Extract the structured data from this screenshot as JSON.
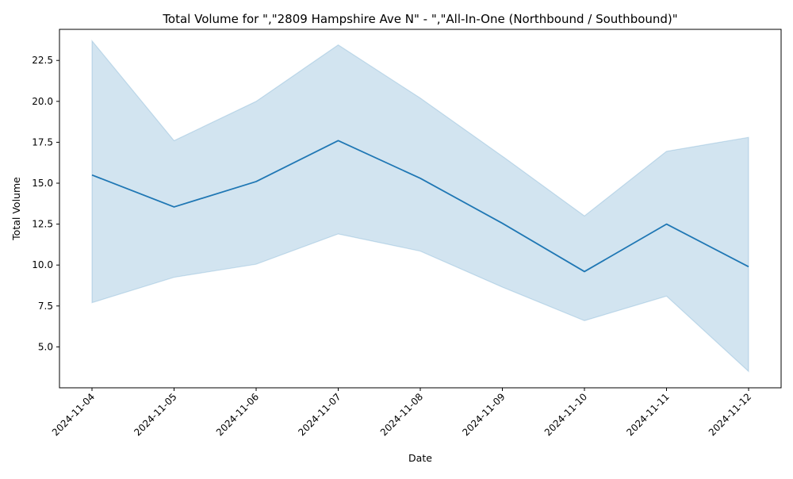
{
  "chart_data": {
    "type": "line",
    "title": "Total Volume for \",\"2809 Hampshire Ave N\" - \",\"All-In-One (Northbound / Southbound)\"",
    "xlabel": "Date",
    "ylabel": "Total Volume",
    "x": [
      "2024-11-04",
      "2024-11-05",
      "2024-11-06",
      "2024-11-07",
      "2024-11-08",
      "2024-11-09",
      "2024-11-10",
      "2024-11-11",
      "2024-11-12"
    ],
    "series": [
      {
        "values": [
          15.5,
          13.55,
          15.1,
          17.6,
          15.3,
          12.55,
          9.6,
          12.5,
          9.9
        ],
        "band_upper": [
          23.7,
          17.6,
          20.0,
          23.45,
          20.2,
          16.65,
          13.0,
          16.95,
          17.8
        ],
        "band_lower": [
          7.7,
          9.25,
          10.05,
          11.9,
          10.85,
          8.65,
          6.6,
          8.1,
          3.5
        ]
      }
    ],
    "yticks": [
      5.0,
      7.5,
      10.0,
      12.5,
      15.0,
      17.5,
      20.0,
      22.5
    ],
    "ytick_labels": [
      "5.0",
      "7.5",
      "10.0",
      "12.5",
      "15.0",
      "17.5",
      "20.0",
      "22.5"
    ],
    "ylim": [
      2.5,
      24.4
    ],
    "grid": false,
    "legend": "none",
    "colors": {
      "line": "#1f77b4",
      "band_fill": "#1f77b4",
      "band_edge": "#1f77b4"
    }
  }
}
